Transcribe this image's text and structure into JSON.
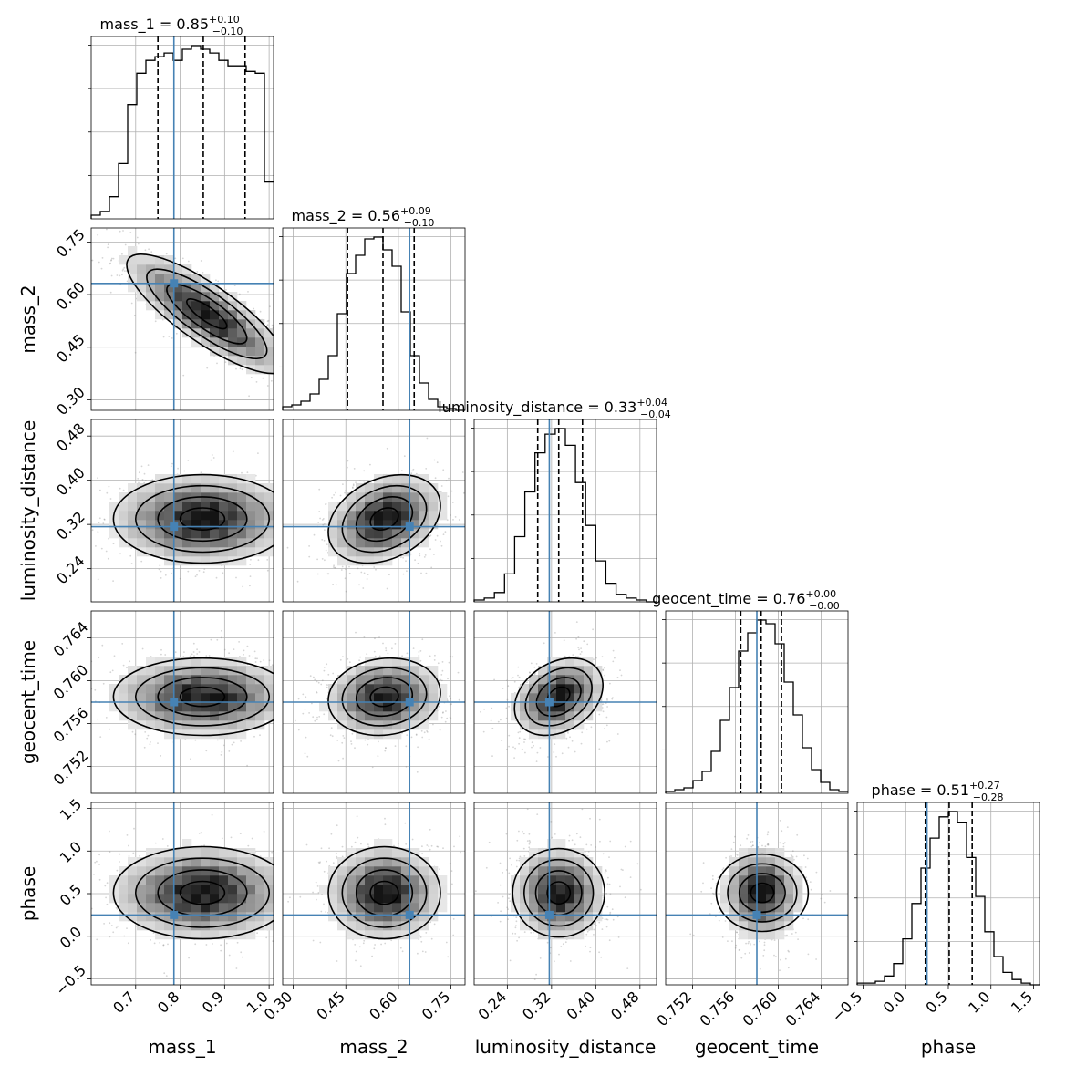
{
  "chart_data": {
    "type": "corner",
    "truth_color": "#4682b4",
    "parameters": [
      {
        "name": "mass_1",
        "axis_label": "mass_1",
        "range": [
          0.6,
          1.01
        ],
        "ticks": [
          0.7,
          0.8,
          0.9,
          1.0
        ],
        "tick_labels": [
          "0.7",
          "0.8",
          "0.9",
          "1.0"
        ],
        "truth": 0.786,
        "title": {
          "prefix": "mass_1 = 0.85",
          "plus": "+0.10",
          "minus": "−0.10"
        },
        "quantiles": [
          0.75,
          0.852,
          0.946
        ],
        "hist": [
          0.02,
          0.04,
          0.12,
          0.3,
          0.62,
          0.79,
          0.86,
          0.88,
          0.9,
          0.86,
          0.92,
          0.94,
          0.92,
          0.9,
          0.86,
          0.83,
          0.83,
          0.8,
          0.79,
          0.2
        ]
      },
      {
        "name": "mass_2",
        "axis_label": "mass_2",
        "range": [
          0.27,
          0.79
        ],
        "ticks": [
          0.3,
          0.45,
          0.6,
          0.75
        ],
        "tick_labels": [
          "0.30",
          "0.45",
          "0.60",
          "0.75"
        ],
        "truth": 0.632,
        "title": {
          "prefix": "mass_2 = 0.56",
          "plus": "+0.09",
          "minus": "−0.10"
        },
        "quantiles": [
          0.455,
          0.556,
          0.645
        ],
        "hist": [
          0.02,
          0.03,
          0.05,
          0.09,
          0.17,
          0.3,
          0.53,
          0.75,
          0.85,
          0.94,
          0.95,
          0.88,
          0.79,
          0.54,
          0.3,
          0.15,
          0.06,
          0.02,
          0.01,
          0.0
        ]
      },
      {
        "name": "luminosity_distance",
        "axis_label": "luminosity_distance",
        "range": [
          0.18,
          0.51
        ],
        "ticks": [
          0.24,
          0.32,
          0.4,
          0.48
        ],
        "tick_labels": [
          "0.24",
          "0.32",
          "0.40",
          "0.48"
        ],
        "truth": 0.316,
        "title": {
          "prefix": "luminosity_distance = 0.33",
          "plus": "+0.04",
          "minus": "−0.04"
        },
        "quantiles": [
          0.295,
          0.333,
          0.376
        ],
        "hist": [
          0.01,
          0.02,
          0.05,
          0.15,
          0.35,
          0.59,
          0.8,
          0.9,
          0.93,
          0.84,
          0.64,
          0.41,
          0.22,
          0.1,
          0.04,
          0.02,
          0.01,
          0.0
        ]
      },
      {
        "name": "geocent_time",
        "axis_label": "geocent_time",
        "range": [
          0.7495,
          0.7665
        ],
        "ticks": [
          0.752,
          0.756,
          0.76,
          0.764
        ],
        "tick_labels": [
          "0.752",
          "0.756",
          "0.760",
          "0.764"
        ],
        "truth": 0.758,
        "title": {
          "prefix": "geocent_time = 0.76",
          "plus": "+0.00",
          "minus": "−0.00"
        },
        "quantiles": [
          0.7565,
          0.7584,
          0.7603
        ],
        "hist": [
          0.01,
          0.02,
          0.03,
          0.07,
          0.12,
          0.23,
          0.4,
          0.58,
          0.78,
          0.88,
          0.95,
          0.93,
          0.82,
          0.61,
          0.43,
          0.25,
          0.13,
          0.06,
          0.02,
          0.01
        ]
      },
      {
        "name": "phase",
        "axis_label": "phase",
        "range": [
          -0.57,
          1.57
        ],
        "ticks": [
          -0.5,
          0.0,
          0.5,
          1.0,
          1.5
        ],
        "tick_labels": [
          "−0.5",
          "0.0",
          "0.5",
          "1.0",
          "1.5"
        ],
        "truth": 0.25,
        "title": {
          "prefix": "phase = 0.51",
          "plus": "+0.27",
          "minus": "−0.28"
        },
        "quantiles": [
          0.23,
          0.51,
          0.78
        ],
        "hist": [
          0.01,
          0.01,
          0.02,
          0.05,
          0.12,
          0.26,
          0.46,
          0.66,
          0.83,
          0.95,
          0.98,
          0.92,
          0.72,
          0.5,
          0.3,
          0.16,
          0.07,
          0.03,
          0.01,
          0.0
        ]
      }
    ],
    "pairs": [
      {
        "x": "mass_1",
        "y": "mass_2",
        "mean": [
          0.86,
          0.545
        ],
        "sd": [
          0.09,
          0.085
        ],
        "rho": -0.82
      },
      {
        "x": "mass_1",
        "y": "luminosity_distance",
        "mean": [
          0.85,
          0.33
        ],
        "sd": [
          0.1,
          0.04
        ],
        "rho": 0.0
      },
      {
        "x": "mass_2",
        "y": "luminosity_distance",
        "mean": [
          0.56,
          0.33
        ],
        "sd": [
          0.08,
          0.04
        ],
        "rho": 0.3
      },
      {
        "x": "luminosity_distance",
        "y": "luminosity_distance",
        "skip": true
      },
      {
        "x": "mass_1",
        "y": "geocent_time",
        "mean": [
          0.85,
          0.7585
        ],
        "sd": [
          0.1,
          0.0018
        ],
        "rho": 0.0
      },
      {
        "x": "mass_2",
        "y": "geocent_time",
        "mean": [
          0.56,
          0.7585
        ],
        "sd": [
          0.08,
          0.0018
        ],
        "rho": 0.1
      },
      {
        "x": "luminosity_distance",
        "y": "geocent_time",
        "mean": [
          0.333,
          0.7585
        ],
        "sd": [
          0.04,
          0.0018
        ],
        "rho": 0.3
      },
      {
        "x": "mass_1",
        "y": "phase",
        "mean": [
          0.85,
          0.51
        ],
        "sd": [
          0.1,
          0.27
        ],
        "rho": 0.0
      },
      {
        "x": "mass_2",
        "y": "phase",
        "mean": [
          0.56,
          0.51
        ],
        "sd": [
          0.08,
          0.27
        ],
        "rho": 0.0
      },
      {
        "x": "luminosity_distance",
        "y": "phase",
        "mean": [
          0.333,
          0.51
        ],
        "sd": [
          0.04,
          0.27
        ],
        "rho": 0.0
      },
      {
        "x": "geocent_time",
        "y": "phase",
        "mean": [
          0.7585,
          0.51
        ],
        "sd": [
          0.0018,
          0.27
        ],
        "rho": 0.0
      }
    ]
  }
}
